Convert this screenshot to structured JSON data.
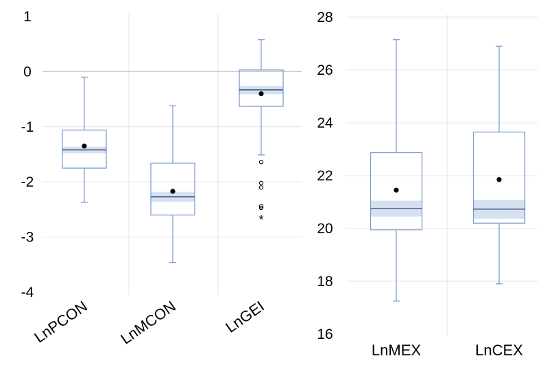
{
  "colors": {
    "box_stroke": "#7f9dd1",
    "median_line": "#2f3f6e",
    "notch_fill": "#d5e0f1",
    "grid": "#e4e4e4",
    "zero_line": "#c8c8c8",
    "mean_dot": "#000000"
  },
  "chart_data": [
    {
      "type": "box",
      "title": "",
      "xlabel": "",
      "ylabel": "",
      "ylim": [
        -4,
        1
      ],
      "yticks": [
        "1",
        "0",
        "-1",
        "-2",
        "-3",
        "-4"
      ],
      "ytick_values": [
        1,
        0,
        -1,
        -2,
        -3,
        -4
      ],
      "categories": [
        "LnPCON",
        "LnMCON",
        "LnGEI"
      ],
      "series": [
        {
          "category": "LnPCON",
          "min": -2.37,
          "q1": -1.75,
          "median": -1.42,
          "q3": -1.06,
          "max": -0.1,
          "mean": -1.35,
          "notch_low": -1.48,
          "notch_high": -1.36,
          "outliers": [],
          "extremes": []
        },
        {
          "category": "LnMCON",
          "min": -3.46,
          "q1": -2.6,
          "median": -2.27,
          "q3": -1.66,
          "max": -0.62,
          "mean": -2.17,
          "notch_low": -2.36,
          "notch_high": -2.18,
          "outliers": [],
          "extremes": []
        },
        {
          "category": "LnGEI",
          "min": -1.51,
          "q1": -0.63,
          "median": -0.33,
          "q3": 0.03,
          "max": 0.58,
          "mean": -0.4,
          "notch_low": -0.41,
          "notch_high": -0.26,
          "outliers": [
            -1.64,
            -2.02,
            -2.1,
            -2.44,
            -2.47
          ],
          "extremes": [
            -2.66
          ]
        }
      ]
    },
    {
      "type": "box",
      "title": "",
      "xlabel": "",
      "ylabel": "",
      "ylim": [
        16,
        28
      ],
      "yticks": [
        "28",
        "26",
        "24",
        "22",
        "20",
        "18",
        "16"
      ],
      "ytick_values": [
        28,
        26,
        24,
        22,
        20,
        18,
        16
      ],
      "categories": [
        "LnMEX",
        "LnCEX"
      ],
      "series": [
        {
          "category": "LnMEX",
          "min": 17.25,
          "q1": 19.95,
          "median": 20.75,
          "q3": 22.87,
          "max": 27.15,
          "mean": 21.45,
          "notch_low": 20.45,
          "notch_high": 21.05,
          "outliers": [],
          "extremes": []
        },
        {
          "category": "LnCEX",
          "min": 17.9,
          "q1": 20.2,
          "median": 20.73,
          "q3": 23.65,
          "max": 26.9,
          "mean": 21.85,
          "notch_low": 20.37,
          "notch_high": 21.08,
          "outliers": [],
          "extremes": []
        }
      ]
    }
  ]
}
